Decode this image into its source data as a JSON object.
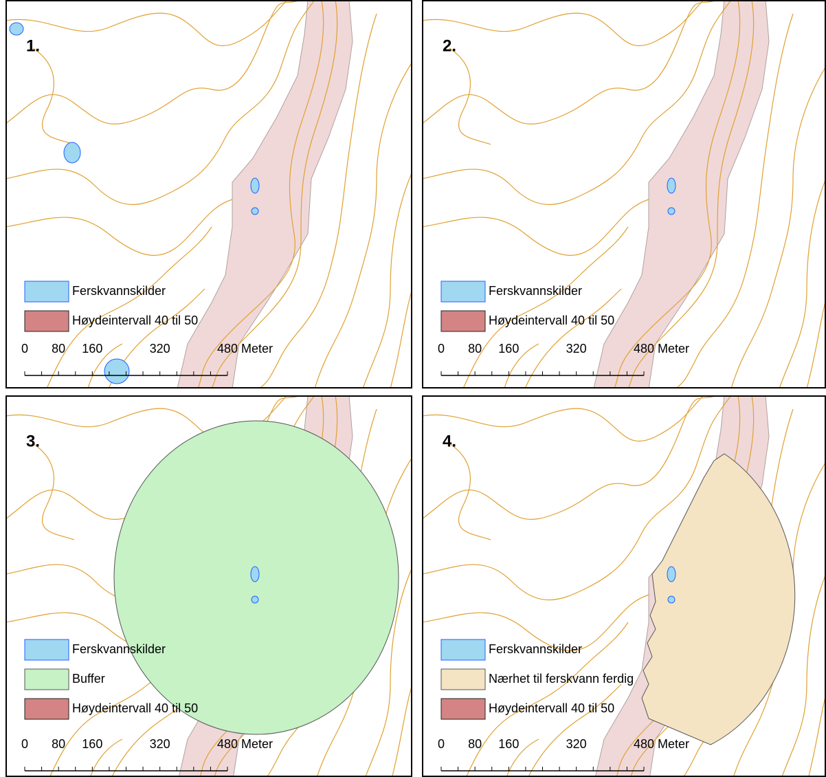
{
  "panels": [
    {
      "label": "1.",
      "legend": [
        {
          "text": "Ferskvannskilder",
          "color": "#9fd8f0"
        },
        {
          "text": "Høydeintervall 40 til 50",
          "color": "#d48484"
        }
      ]
    },
    {
      "label": "2.",
      "legend": [
        {
          "text": "Ferskvannskilder",
          "color": "#9fd8f0"
        },
        {
          "text": "Høydeintervall 40 til 50",
          "color": "#d48484"
        }
      ]
    },
    {
      "label": "3.",
      "legend": [
        {
          "text": "Ferskvannskilder",
          "color": "#9fd8f0"
        },
        {
          "text": "Buffer",
          "color": "#c6f2c6"
        },
        {
          "text": "Høydeintervall 40 til 50",
          "color": "#d48484"
        }
      ]
    },
    {
      "label": "4.",
      "legend": [
        {
          "text": "Ferskvannskilder",
          "color": "#9fd8f0"
        },
        {
          "text": "Nærhet til ferskvann ferdig",
          "color": "#f5e4c4"
        },
        {
          "text": "Høydeintervall 40 til 50",
          "color": "#d48484"
        }
      ]
    }
  ],
  "scale_bar": {
    "ticks": [
      0,
      80,
      160,
      320,
      480
    ],
    "unit": "Meter"
  }
}
